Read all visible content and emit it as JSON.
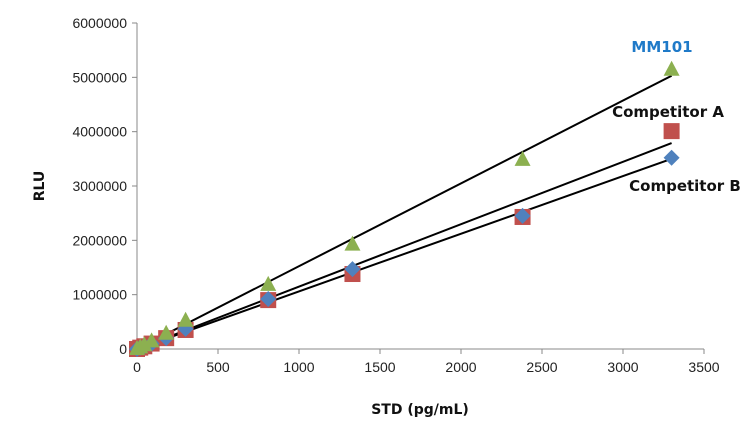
{
  "chart_data": {
    "type": "scatter",
    "title": "",
    "xlabel": "STD (pg/mL)",
    "ylabel": "RLU",
    "xlim": [
      0,
      3500
    ],
    "ylim": [
      0,
      6000000
    ],
    "xticks": [
      0,
      500,
      1000,
      1500,
      2000,
      2500,
      3000,
      3500
    ],
    "yticks": [
      0,
      1000000,
      2000000,
      3000000,
      4000000,
      5000000,
      6000000
    ],
    "xtick_labels": [
      "0",
      "500",
      "1000",
      "1500",
      "2000",
      "2500",
      "3000",
      "3500"
    ],
    "ytick_labels": [
      "0",
      "1000000",
      "2000000",
      "3000000",
      "4000000",
      "5000000",
      "6000000"
    ],
    "grid": false,
    "series": [
      {
        "name": "MM101",
        "marker": "triangle",
        "color": "#8CB050",
        "label_color": "#1F7AC8",
        "x": [
          0,
          20,
          45,
          90,
          180,
          300,
          810,
          1330,
          2380,
          3300
        ],
        "y": [
          0,
          30000,
          70000,
          140000,
          280000,
          520000,
          1180000,
          1920000,
          3480000,
          5140000
        ],
        "trend_end": 5030000
      },
      {
        "name": "Competitor A",
        "marker": "square",
        "color": "#C0504D",
        "label_color": "#111111",
        "x": [
          0,
          20,
          45,
          90,
          180,
          300,
          810,
          1330,
          2380,
          3300
        ],
        "y": [
          0,
          25000,
          50000,
          100000,
          200000,
          350000,
          900000,
          1380000,
          2430000,
          4010000
        ],
        "trend_end": 3790000
      },
      {
        "name": "Competitor B",
        "marker": "diamond",
        "color": "#4F81BD",
        "label_color": "#111111",
        "x": [
          0,
          20,
          45,
          90,
          180,
          300,
          810,
          1330,
          2380,
          3300
        ],
        "y": [
          0,
          25000,
          50000,
          100000,
          200000,
          370000,
          920000,
          1470000,
          2450000,
          3520000
        ],
        "trend_end": 3500000
      }
    ]
  }
}
